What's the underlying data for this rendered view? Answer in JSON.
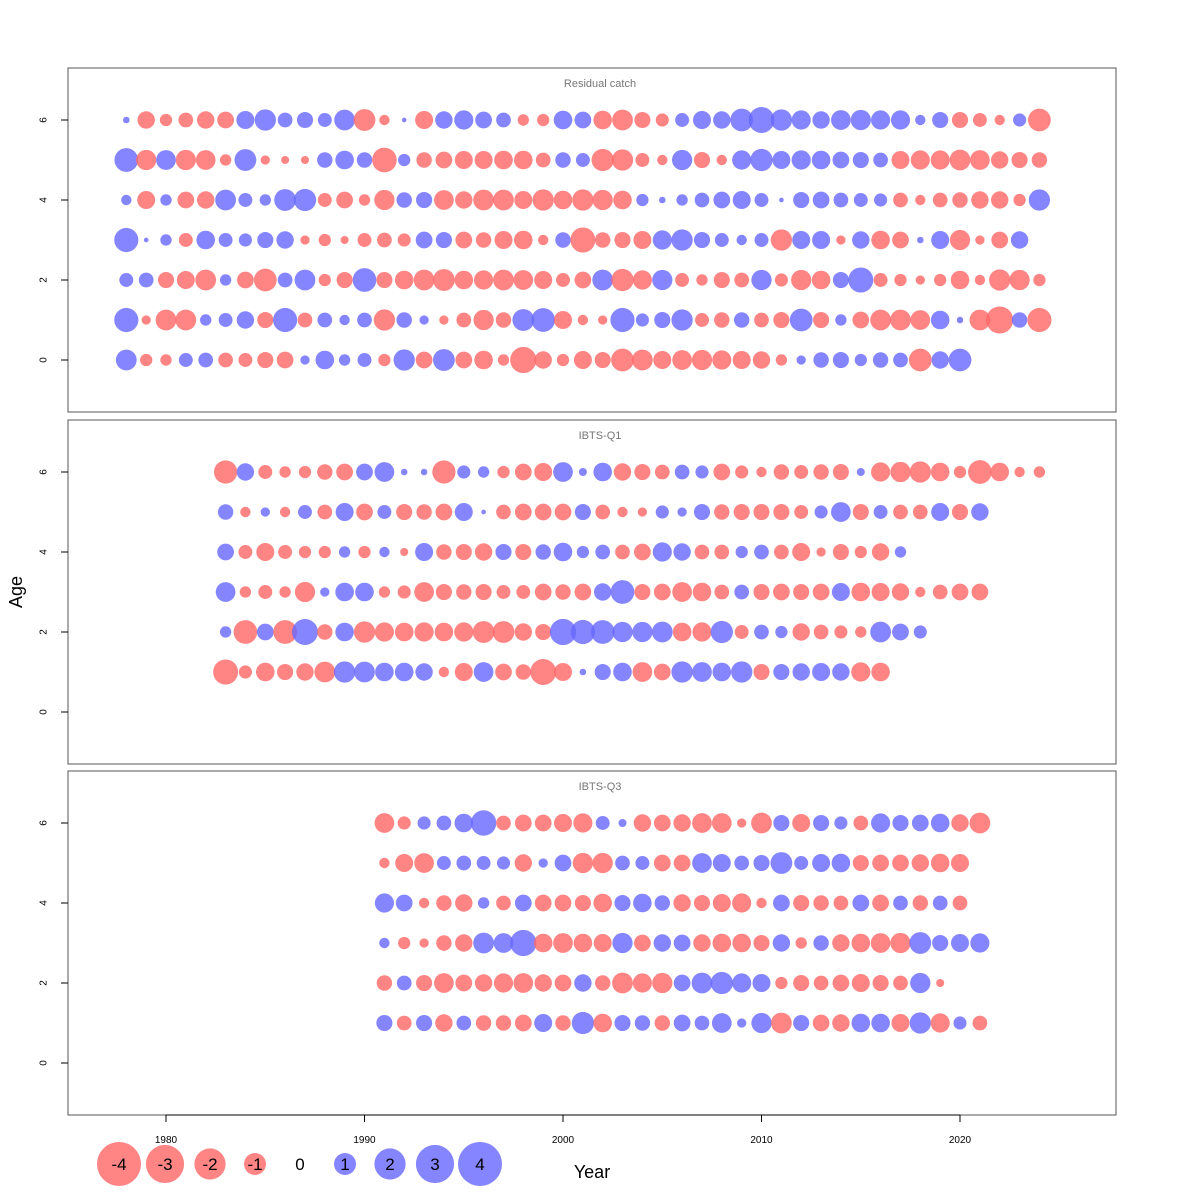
{
  "chart_data": {
    "type": "bubble",
    "xlabel": "Year",
    "ylabel": "Age",
    "x_ticks": [
      1980,
      1990,
      2000,
      2010,
      2020
    ],
    "y_ticks": [
      0,
      2,
      4,
      6
    ],
    "colors": {
      "positive": "#6666ff",
      "negative": "#ff6666"
    },
    "legend": {
      "values": [
        -4,
        -3,
        -2,
        -1,
        0,
        1,
        2,
        3,
        4
      ],
      "labels": [
        "-4",
        "-3",
        "-2",
        "-1",
        "0",
        "1",
        "2",
        "3",
        "4"
      ]
    },
    "panels": [
      {
        "title": "Residual catch",
        "years": [
          1978,
          2024
        ],
        "residuals": {
          "6": [
            0.2,
            -1.4,
            -0.7,
            -1,
            -1.4,
            -1.3,
            1.5,
            2.1,
            1,
            1.2,
            0.9,
            2,
            -2.2,
            -0.5,
            0.1,
            -1.5,
            1.4,
            1.7,
            1.3,
            1,
            -0.6,
            -0.7,
            1.6,
            1.3,
            -1.6,
            -2,
            -1.2,
            -0.8,
            0.9,
            1.5,
            1.4,
            2.4,
            3.1,
            2.1,
            1.7,
            1.4,
            1.8,
            1.9,
            1.7,
            1.7,
            0.5,
            1.2,
            -1.2,
            -0.9,
            -0.5,
            0.8,
            -2.4
          ],
          "5": [
            2.6,
            -1.9,
            1.8,
            -1.9,
            -1.8,
            -0.6,
            2.2,
            -0.4,
            -0.3,
            -0.3,
            1.1,
            1.6,
            1.1,
            -2.8,
            0.7,
            -1.1,
            -1.3,
            -1.5,
            -1.5,
            -1.6,
            -1.6,
            -1,
            1.1,
            0.9,
            -2.3,
            -2.1,
            -0.9,
            -0.5,
            1.9,
            -1.2,
            -0.5,
            1.7,
            2.3,
            1.5,
            1.7,
            1.6,
            1.3,
            1.2,
            1,
            -1.5,
            -1.7,
            -1.7,
            -2,
            -1.8,
            -1.4,
            -1.2,
            -1.1
          ],
          "4": [
            0.5,
            -1.5,
            0.6,
            -1.3,
            -1.4,
            2,
            0.9,
            0.6,
            2.2,
            2.3,
            -0.9,
            -1.3,
            -0.6,
            -1.9,
            1.1,
            1.2,
            -1.8,
            -1.4,
            -2,
            -2,
            -1.5,
            -2.1,
            -1.6,
            -2.1,
            -1.9,
            -1.6,
            0.7,
            0.2,
            0.6,
            1,
            1.3,
            1.5,
            0.9,
            0.1,
            1.2,
            1.3,
            1,
            0.9,
            0.8,
            -1,
            -0.5,
            -1,
            -1.1,
            -1.4,
            -1.4,
            -0.7,
            2.1
          ],
          "3": [
            2.7,
            0.1,
            0.6,
            -0.9,
            1.6,
            0.9,
            0.8,
            1.2,
            1.4,
            -0.4,
            -0.7,
            -0.3,
            -0.9,
            -1,
            -0.8,
            1.3,
            1.2,
            -1.3,
            -1.1,
            -1.5,
            -1.6,
            -0.5,
            1.1,
            -2.9,
            -1.1,
            -1.2,
            -1.5,
            1.7,
            2.1,
            1.2,
            0.9,
            0.5,
            0.9,
            -2.1,
            1.5,
            1.5,
            -0.4,
            1.4,
            -1.6,
            -1.3,
            0.2,
            1.5,
            -1.9,
            -0.4,
            -1.3,
            1.4
          ],
          "2": [
            0.9,
            1,
            -1.2,
            -1.5,
            -2,
            0.6,
            -1.3,
            -2.4,
            1,
            2,
            -0.7,
            -1.2,
            2.6,
            -1.2,
            -1.6,
            -2,
            -2.2,
            -1.6,
            -1.7,
            -2,
            -1.8,
            -1.5,
            -0.9,
            -1.3,
            2,
            -2.3,
            -1.7,
            1.9,
            -0.9,
            -0.6,
            -1.2,
            -1,
            1.9,
            -0.8,
            -1.9,
            -1.6,
            1.2,
            2.9,
            -0.9,
            -0.7,
            -0.4,
            -0.7,
            -1.6,
            -0.5,
            -2.1,
            -1.9,
            -0.7
          ],
          "1": [
            2.7,
            -0.4,
            -2,
            -2,
            0.6,
            0.9,
            1.4,
            -1.2,
            2.7,
            -1,
            1,
            0.5,
            1,
            -2.1,
            1.1,
            0.4,
            -0.4,
            -1,
            -1.9,
            -1.1,
            2.2,
            2.6,
            -1.5,
            -0.5,
            -0.4,
            2.7,
            0.8,
            1.2,
            2.1,
            -0.9,
            -1.1,
            1.1,
            -1,
            -1.2,
            2.4,
            -1.2,
            0.6,
            -1.3,
            -2,
            -2,
            -1.8,
            1.6,
            0.2,
            -2,
            -3.4,
            1.1,
            -2.7
          ],
          "0": [
            2,
            -0.7,
            -0.6,
            0.9,
            1,
            -1,
            -0.9,
            -1.2,
            -1.3,
            0.4,
            1.6,
            0.6,
            0.9,
            -0.7,
            2.1,
            -1.3,
            2.2,
            -1.3,
            -1.6,
            -0.6,
            -3.2,
            -1.4,
            -0.7,
            -1.5,
            -1.2,
            -2.4,
            -2,
            -1.5,
            -1.8,
            -1.9,
            -1.7,
            -1.5,
            -1.4,
            -0.6,
            0.4,
            1.1,
            1.2,
            0.7,
            1.1,
            1,
            -2.4,
            1.4,
            2.4
          ]
        }
      },
      {
        "title": "IBTS-Q1",
        "years": [
          1983,
          2025
        ],
        "residuals": {
          "6": [
            -2.5,
            1.4,
            -0.9,
            -0.6,
            -0.7,
            -1.1,
            -1.3,
            1.3,
            1.8,
            0.2,
            0.2,
            -2.5,
            0.8,
            0.6,
            -0.7,
            -1.3,
            -1.5,
            1.8,
            0.3,
            1.6,
            -1.4,
            -1.2,
            -1,
            1,
            0.8,
            -1.3,
            -0.8,
            -0.5,
            -1.1,
            -0.9,
            -1.1,
            -1.2,
            0.3,
            -1.7,
            -1.9,
            -2.1,
            -1.6,
            -0.7,
            -2.6,
            -1.6,
            -0.5,
            -0.6
          ],
          "5": [
            1.1,
            -0.5,
            0.4,
            -0.5,
            0.9,
            -1,
            1.5,
            -1.3,
            0.9,
            -1.2,
            -1.1,
            -1.3,
            1.5,
            0.1,
            -1,
            -1.3,
            -1.3,
            -1.3,
            1.2,
            -1,
            -0.5,
            -0.4,
            0.8,
            0.4,
            1.2,
            -1.1,
            -1.2,
            -1.2,
            -1.2,
            -0.9,
            0.8,
            1.8,
            -1.2,
            0.9,
            -1,
            -1,
            1.5,
            -1.2,
            1.4
          ],
          "4": [
            1.3,
            -0.9,
            -1.5,
            -0.9,
            -0.7,
            -0.7,
            0.6,
            -0.7,
            0.5,
            -0.3,
            1.5,
            -1.1,
            -1.2,
            -1.4,
            1.2,
            -1.2,
            1.1,
            1.6,
            0.7,
            1,
            -1,
            -1.3,
            1.7,
            1.4,
            -1,
            -1,
            0.7,
            1,
            -1,
            -1.5,
            -0.4,
            -1.2,
            -0.7,
            -1.4,
            0.6
          ],
          "3": [
            1.8,
            -0.6,
            -0.9,
            -0.6,
            -1.9,
            0.4,
            1.6,
            1.6,
            -0.6,
            -0.8,
            -1.8,
            -1.2,
            -1.1,
            -1.2,
            -0.9,
            -0.9,
            -1.3,
            -1.1,
            -1.3,
            1.4,
            2.6,
            -1.2,
            -1.3,
            -1.8,
            -1.6,
            -1,
            1,
            -1.2,
            -1.3,
            -1.2,
            -1.3,
            1.5,
            -1.6,
            -1.5,
            -1.4,
            -0.5,
            -1,
            -1.3,
            -1.3
          ],
          "2": [
            0.6,
            -2.6,
            1.3,
            -2.6,
            3.1,
            -1.1,
            1.6,
            -2.1,
            -1.7,
            -1.6,
            -1.7,
            -1.6,
            -1.7,
            -2.2,
            -2.2,
            -1.4,
            -1.2,
            3.2,
            2.7,
            2.6,
            1.9,
            1.9,
            2,
            -1.6,
            -1.7,
            2.3,
            -0.9,
            1,
            0.7,
            -1.4,
            -1,
            -0.8,
            -0.6,
            2,
            1.3,
            0.8
          ],
          "1": [
            -2.9,
            -0.8,
            -1.6,
            -1.2,
            -1.4,
            -2,
            2.1,
            2,
            1.6,
            1.6,
            1.4,
            -0.5,
            -1.5,
            1.8,
            -1.3,
            -1.1,
            -3.1,
            -1.5,
            0.2,
            1.2,
            1.6,
            -1.8,
            -1.3,
            2.1,
            1.8,
            1.6,
            2.1,
            -1.2,
            1.2,
            1.4,
            1.5,
            1.4,
            -1.7,
            -1.6
          ]
        }
      },
      {
        "title": "IBTS-Q3",
        "years": [
          1991,
          2024
        ],
        "residuals": {
          "6": [
            -1.8,
            -0.8,
            0.8,
            1,
            1.6,
            3,
            -1,
            -1.3,
            -1.3,
            -1.5,
            -1.7,
            0.9,
            0.3,
            -1.4,
            -1.3,
            -1.4,
            -1.8,
            -1.8,
            -0.4,
            -2,
            1.2,
            -1.5,
            1.2,
            0.8,
            -1,
            1.7,
            1.2,
            1.3,
            1.6,
            -1.4,
            -2
          ],
          "5": [
            -0.5,
            -1.5,
            -1.8,
            0.9,
            1,
            0.9,
            0.8,
            -1.4,
            0.4,
            1.3,
            -1.9,
            -1.9,
            1,
            0.9,
            -1.3,
            -1.3,
            1.8,
            1.5,
            1,
            1.2,
            2.2,
            0.9,
            1.5,
            1.6,
            -1.2,
            -1.3,
            -1.3,
            -1.4,
            -1.6,
            -1.5
          ],
          "4": [
            1.7,
            1.3,
            -0.5,
            -1.1,
            -1.4,
            0.6,
            -1,
            1.3,
            -1.3,
            -1.3,
            -1.2,
            -1.6,
            1.2,
            1.6,
            1.1,
            -1.4,
            -1.2,
            -1.5,
            -1.7,
            -0.5,
            1.3,
            -1.2,
            -1.1,
            -1,
            1.3,
            -1.3,
            1,
            -1.1,
            1,
            -1
          ],
          "3": [
            0.5,
            -0.7,
            -0.4,
            -1.1,
            -1.4,
            2,
            1.8,
            3.2,
            -1.6,
            -1.8,
            -1.6,
            -1.5,
            1.9,
            -1.3,
            1.4,
            1.3,
            -1.4,
            -1.6,
            -1.6,
            -1.2,
            1.4,
            -0.6,
            1.1,
            -1.4,
            -1.6,
            -1.8,
            -1.9,
            2.2,
            1.2,
            1.5,
            1.7
          ],
          "2": [
            -1.1,
            1,
            -1.2,
            -1.8,
            -1.3,
            -1.4,
            -1.7,
            -1.8,
            -1.4,
            -1.3,
            1.4,
            -1.1,
            -2,
            -1.7,
            -1.9,
            1.3,
            2,
            2.3,
            1.7,
            1.5,
            -0.7,
            -1.2,
            -1,
            -1.3,
            -1.5,
            -1.2,
            -1,
            1.9,
            -0.3
          ],
          "1": [
            1.2,
            -1,
            1.2,
            -1.4,
            1,
            -1.1,
            -1.1,
            -1.3,
            1.5,
            -1.1,
            2.3,
            -1.6,
            1.2,
            1.1,
            -1.1,
            1.3,
            1,
            1.8,
            0.4,
            1.9,
            -2,
            1.2,
            -1.3,
            -1.4,
            1.6,
            1.6,
            -1.5,
            2.1,
            -1.7,
            0.8,
            -1
          ]
        }
      }
    ]
  }
}
